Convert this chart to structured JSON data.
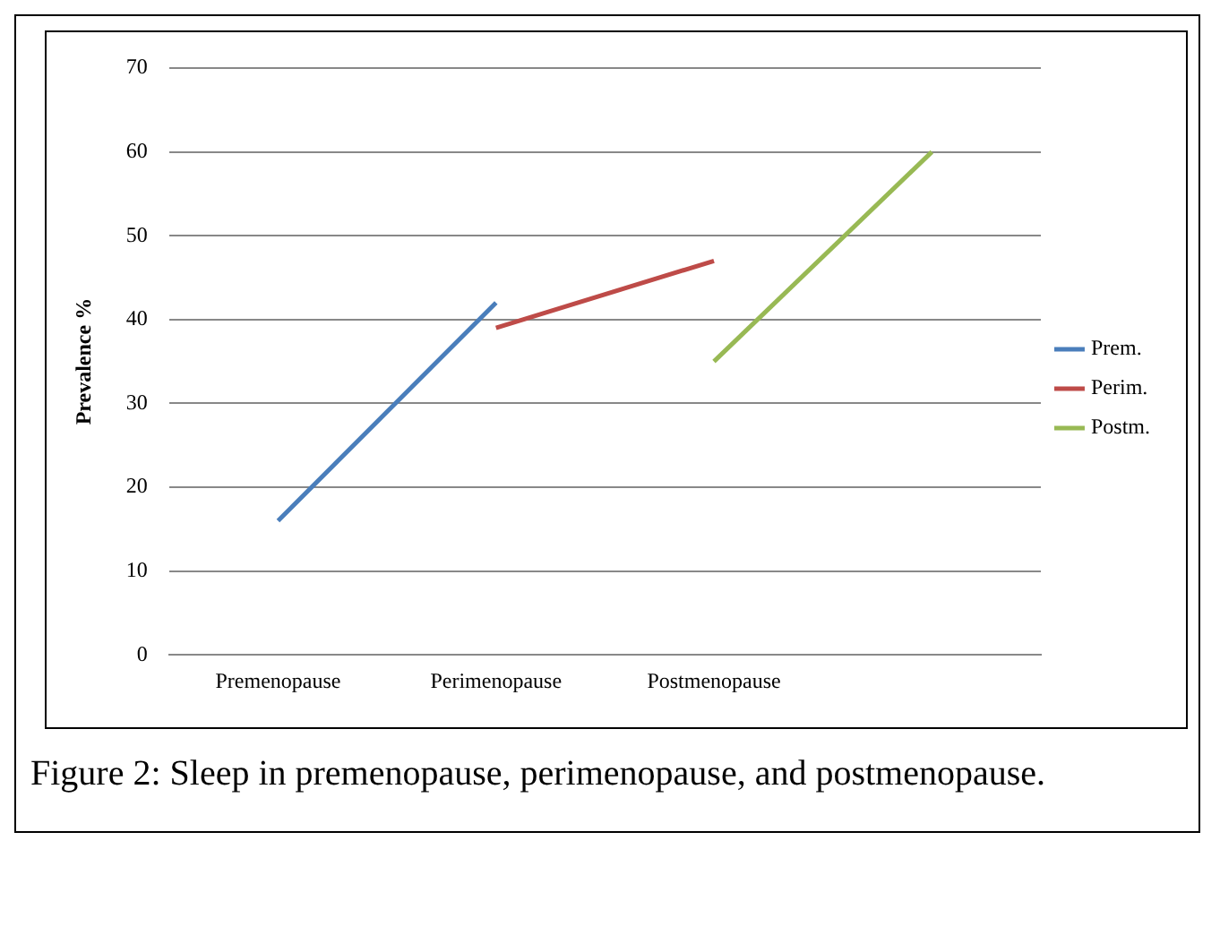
{
  "chart_data": {
    "type": "line",
    "ylabel": "Prevalence %",
    "categories": [
      "Premenopause",
      "Perimenopause",
      "Postmenopause",
      null
    ],
    "series": [
      {
        "name": "Prem.",
        "color": "#4a7ebb",
        "values": [
          16,
          42,
          null,
          null
        ]
      },
      {
        "name": "Perim.",
        "color": "#be4b48",
        "values": [
          null,
          39,
          47,
          null
        ]
      },
      {
        "name": "Postm.",
        "color": "#98b954",
        "values": [
          null,
          null,
          35,
          60
        ]
      }
    ],
    "ylim": [
      0,
      70
    ],
    "yticks": [
      0,
      10,
      20,
      30,
      40,
      50,
      60,
      70
    ],
    "grid": "y",
    "legend": "right",
    "marker": "none",
    "line_style": "solid",
    "annotations": [
      "Figure 2: Sleep in premenopause, perimenopause, and postmenopause."
    ]
  }
}
